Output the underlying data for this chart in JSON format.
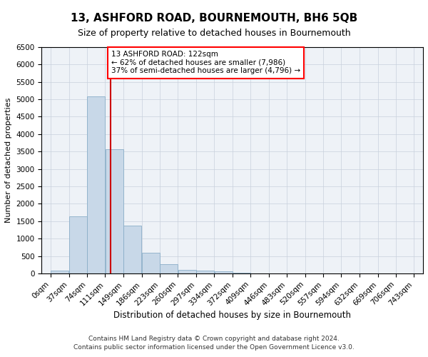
{
  "title": "13, ASHFORD ROAD, BOURNEMOUTH, BH6 5QB",
  "subtitle": "Size of property relative to detached houses in Bournemouth",
  "xlabel": "Distribution of detached houses by size in Bournemouth",
  "ylabel": "Number of detached properties",
  "footnote1": "Contains HM Land Registry data © Crown copyright and database right 2024.",
  "footnote2": "Contains public sector information licensed under the Open Government Licence v3.0.",
  "annotation_line1": "13 ASHFORD ROAD: 122sqm",
  "annotation_line2": "← 62% of detached houses are smaller (7,986)",
  "annotation_line3": "37% of semi-detached houses are larger (4,796) →",
  "property_size": 122,
  "bar_color": "#c8d8e8",
  "bar_edge_color": "#8aaec8",
  "grid_color": "#c8d0dc",
  "bg_color": "#eef2f7",
  "vline_color": "#cc0000",
  "bins": [
    0,
    37,
    74,
    111,
    149,
    186,
    223,
    260,
    297,
    334,
    372,
    409,
    446,
    483,
    520,
    557,
    594,
    632,
    669,
    706,
    743
  ],
  "bin_labels": [
    "0sqm",
    "37sqm",
    "74sqm",
    "111sqm",
    "149sqm",
    "186sqm",
    "223sqm",
    "260sqm",
    "297sqm",
    "334sqm",
    "372sqm",
    "409sqm",
    "446sqm",
    "483sqm",
    "520sqm",
    "557sqm",
    "594sqm",
    "632sqm",
    "669sqm",
    "706sqm",
    "743sqm"
  ],
  "counts": [
    75,
    1630,
    5080,
    3560,
    1380,
    590,
    260,
    100,
    90,
    50,
    10,
    5,
    2,
    1,
    0,
    0,
    0,
    0,
    0,
    0
  ],
  "ylim": [
    0,
    6500
  ],
  "yticks": [
    0,
    500,
    1000,
    1500,
    2000,
    2500,
    3000,
    3500,
    4000,
    4500,
    5000,
    5500,
    6000,
    6500
  ],
  "title_fontsize": 11,
  "subtitle_fontsize": 9,
  "ylabel_fontsize": 8,
  "xlabel_fontsize": 8.5,
  "tick_fontsize": 7.5,
  "footnote_fontsize": 6.5
}
